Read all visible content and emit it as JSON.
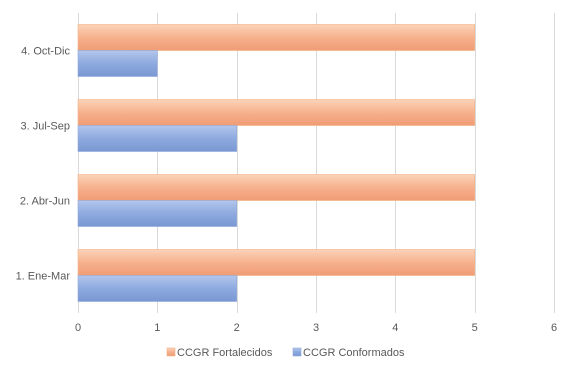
{
  "chart_data": {
    "type": "bar",
    "orientation": "horizontal",
    "categories": [
      "1. Ene-Mar",
      "2. Abr-Jun",
      "3. Jul-Sep",
      "4. Oct-Dic"
    ],
    "series": [
      {
        "name": "CCGR Fortalecidos",
        "values": [
          5,
          5,
          5,
          5
        ],
        "color": "#f4b183"
      },
      {
        "name": "CCGR Conformados",
        "values": [
          2,
          2,
          2,
          1
        ],
        "color": "#8faadc"
      }
    ],
    "xlim": [
      0,
      6
    ],
    "xticks": [
      "0",
      "1",
      "2",
      "3",
      "4",
      "5",
      "6"
    ],
    "grid": true,
    "legend_position": "bottom"
  }
}
